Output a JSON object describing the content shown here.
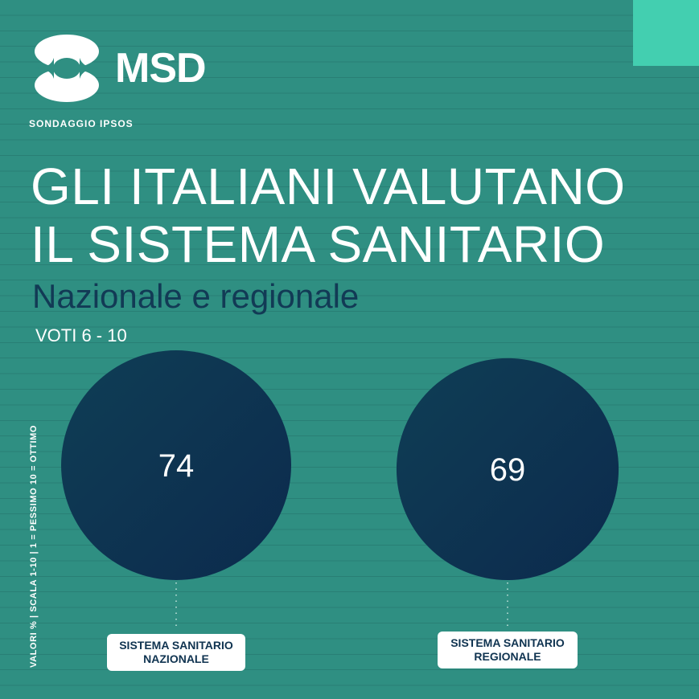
{
  "colors": {
    "background": "#2f8f82",
    "accent": "#43cfb0",
    "circle_dark": "#0c2a4d",
    "circle_light": "#0f3e55",
    "subtitle": "#123a55"
  },
  "logo": {
    "text": "MSD",
    "icon": "msd-emblem-icon"
  },
  "kicker": "SONDAGGIO IPSOS",
  "title": {
    "line1": "GLI ITALIANI VALUTANO",
    "line2": "IL SISTEMA SANITARIO"
  },
  "subtitle": "Nazionale e regionale",
  "range_label": "VOTI 6 - 10",
  "side_note": "VALORI % | SCALA 1-10 | 1 = PESSIMO 10 = OTTIMO",
  "chart_data": {
    "type": "bubble",
    "unit": "%",
    "categories": [
      "SISTEMA SANITARIO NAZIONALE",
      "SISTEMA SANITARIO REGIONALE"
    ],
    "values": [
      74,
      69
    ],
    "labels": [
      {
        "line1": "SISTEMA SANITARIO",
        "line2": "NAZIONALE"
      },
      {
        "line1": "SISTEMA SANITARIO",
        "line2": "REGIONALE"
      }
    ]
  }
}
